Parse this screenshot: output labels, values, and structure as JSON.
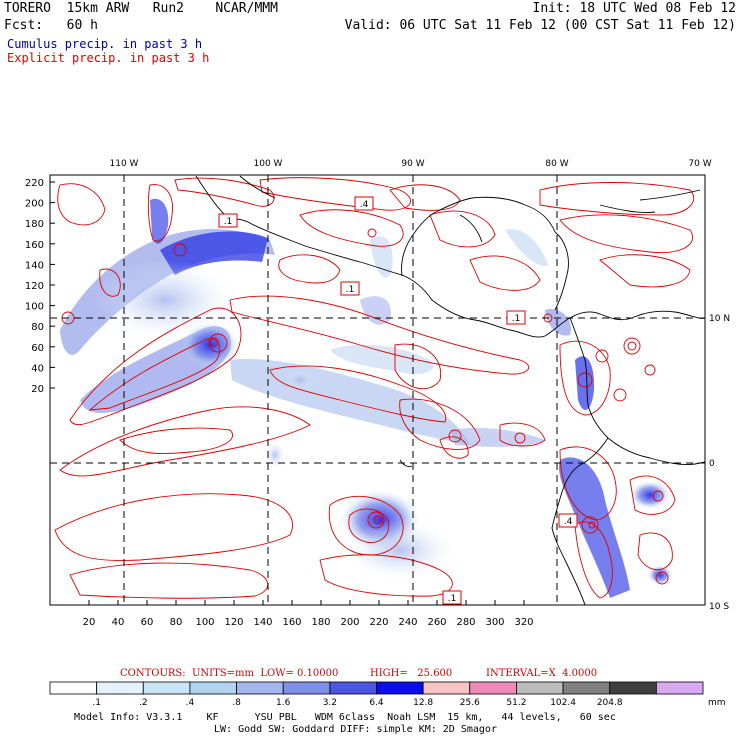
{
  "header": {
    "model_title": "TORERO  15km ARW   Run2    NCAR/MMM",
    "init": "Init: 18 UTC Wed 08 Feb 12",
    "fcst": "Fcst:   60 h",
    "valid": "Valid: 06 UTC Sat 11 Feb 12 (00 CST Sat 11 Feb 12)",
    "legend_cumulus": "Cumulus precip. in past 3 h",
    "legend_explicit": "Explicit precip. in past 3 h"
  },
  "map": {
    "lon_labels": [
      "110 W",
      "100 W",
      "90 W",
      "80 W",
      "70 W"
    ],
    "lat_labels_right": [
      "10 N",
      "0",
      "10 S"
    ],
    "y_ticks": [
      "220",
      "200",
      "180",
      "160",
      "140",
      "120",
      "100",
      "80",
      "60",
      "40",
      "20"
    ],
    "x_ticks": [
      "20",
      "40",
      "60",
      "80",
      "100",
      "120",
      "140",
      "160",
      "180",
      "200",
      "220",
      "240",
      "260",
      "280",
      "300",
      "320"
    ],
    "box_labels": [
      ".1",
      ".4",
      ".1",
      ".1",
      ".4",
      ".1"
    ]
  },
  "contours": {
    "units_text": "CONTOURS:  UNITS=mm  LOW= 0.10000",
    "high_text": "HIGH=   25.600",
    "interval_text": "INTERVAL=X  4.0000"
  },
  "colorbar": {
    "colors": [
      "#ffffff",
      "#e4f2fb",
      "#c8e6f6",
      "#b0d4ef",
      "#a5b4ec",
      "#7f8ee8",
      "#4d55e4",
      "#0a0ee8",
      "#f8c4c4",
      "#f088b8",
      "#bcbcbc",
      "#808080",
      "#404040",
      "#d8a8f0"
    ],
    "labels": [
      ".1",
      ".2",
      ".4",
      ".8",
      "1.6",
      "3.2",
      "6.4",
      "12.8",
      "25.6",
      "51.2",
      "102.4",
      "204.8"
    ],
    "unit": "mm"
  },
  "footer": {
    "line1": "Model Info: V3.3.1    KF      YSU PBL   WDM 6class  Noah LSM  15 km,   44 levels,   60 sec",
    "line2": "LW: Godd SW: Goddard DIFF: simple KM: 2D Smagor"
  }
}
